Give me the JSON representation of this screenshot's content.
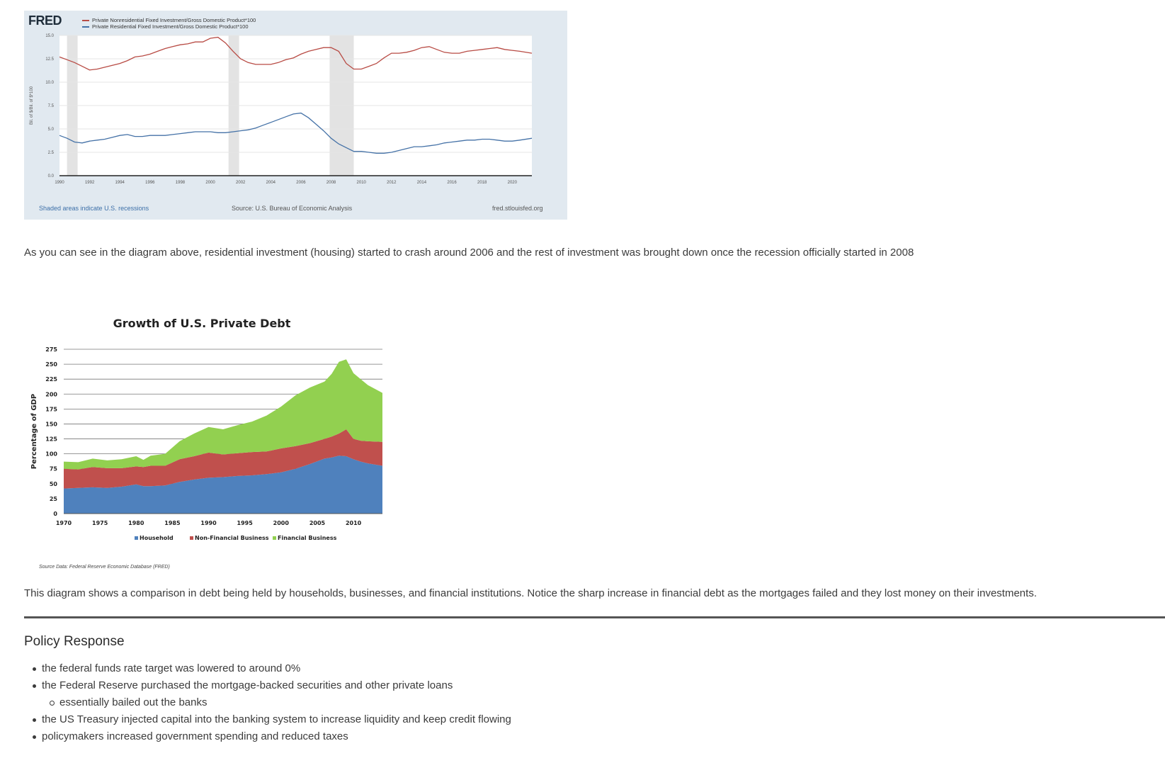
{
  "fred": {
    "logo": "FRED",
    "legend": [
      {
        "label": "Private Nonresidential Fixed Investment/Gross Domestic Product*100",
        "color": "#b84b44"
      },
      {
        "label": "Private Residential Fixed Investment/Gross Domestic Product*100",
        "color": "#4572a7"
      }
    ],
    "footer_left": "Shaded areas indicate U.S. recessions",
    "footer_mid": "Source: U.S. Bureau of Economic Analysis",
    "footer_right": "fred.stlouisfed.org"
  },
  "paragraph1": "As you can see in the diagram above, residential investment (housing) started to crash around 2006 and the rest of investment was brought down once the recession officially started in 2008",
  "debt_source": "Source Data: Federal Reserve Economic Database (FRED)",
  "paragraph2": "This diagram shows a comparison in debt being held by households, businesses, and financial institutions. Notice the sharp increase in financial debt as the mortgages failed and they lost money on their investments.",
  "policy": {
    "title": "Policy Response",
    "items": [
      "the federal funds rate target was lowered to around 0%",
      "the Federal Reserve purchased the mortgage-backed securities and other private loans",
      "essentially bailed out the banks",
      "the US Treasury injected capital into the banking system to increase liquidity and keep credit flowing",
      "policymakers increased government spending and reduced taxes"
    ]
  },
  "chart_data": [
    {
      "type": "line",
      "title": "",
      "ylabel": "Bil. of $/Bil. of $*100",
      "xlim": [
        1990,
        2021.3
      ],
      "ylim": [
        0,
        15
      ],
      "yticks": [
        "0.0",
        "2.5",
        "5.0",
        "7.5",
        "10.0",
        "12.5",
        "15.0"
      ],
      "xticks": [
        "1990",
        "1992",
        "1994",
        "1996",
        "1998",
        "2000",
        "2002",
        "2004",
        "2006",
        "2008",
        "2010",
        "2012",
        "2014",
        "2016",
        "2018",
        "2020"
      ],
      "recessions": [
        [
          1990.5,
          1991.2
        ],
        [
          2001.2,
          2001.9
        ],
        [
          2007.9,
          2009.5
        ]
      ],
      "grid": true,
      "legend_position": "top-left",
      "series": [
        {
          "name": "Private Nonresidential Fixed Investment/Gross Domestic Product*100",
          "color": "#b84b44",
          "x": [
            1990,
            1990.5,
            1991,
            1991.5,
            1992,
            1992.5,
            1993,
            1993.5,
            1994,
            1994.5,
            1995,
            1995.5,
            1996,
            1996.5,
            1997,
            1997.5,
            1998,
            1998.5,
            1999,
            1999.5,
            2000,
            2000.5,
            2001,
            2001.5,
            2002,
            2002.5,
            2003,
            2003.5,
            2004,
            2004.5,
            2005,
            2005.5,
            2006,
            2006.5,
            2007,
            2007.5,
            2008,
            2008.5,
            2009,
            2009.5,
            2010,
            2010.5,
            2011,
            2011.5,
            2012,
            2012.5,
            2013,
            2013.5,
            2014,
            2014.5,
            2015,
            2015.5,
            2016,
            2016.5,
            2017,
            2017.5,
            2018,
            2018.5,
            2019,
            2019.5,
            2020,
            2020.5,
            2021.3
          ],
          "y": [
            12.7,
            12.4,
            12.1,
            11.7,
            11.3,
            11.4,
            11.6,
            11.8,
            12.0,
            12.3,
            12.7,
            12.8,
            13.0,
            13.3,
            13.6,
            13.8,
            14.0,
            14.1,
            14.3,
            14.3,
            14.7,
            14.8,
            14.2,
            13.3,
            12.5,
            12.1,
            11.9,
            11.9,
            11.9,
            12.1,
            12.4,
            12.6,
            13.0,
            13.3,
            13.5,
            13.7,
            13.7,
            13.3,
            12.0,
            11.4,
            11.4,
            11.7,
            12.0,
            12.6,
            13.1,
            13.1,
            13.2,
            13.4,
            13.7,
            13.8,
            13.5,
            13.2,
            13.1,
            13.1,
            13.3,
            13.4,
            13.5,
            13.6,
            13.7,
            13.5,
            13.4,
            13.3,
            13.1
          ]
        },
        {
          "name": "Private Residential Fixed Investment/Gross Domestic Product*100",
          "color": "#4572a7",
          "x": [
            1990,
            1990.5,
            1991,
            1991.5,
            1992,
            1992.5,
            1993,
            1993.5,
            1994,
            1994.5,
            1995,
            1995.5,
            1996,
            1996.5,
            1997,
            1997.5,
            1998,
            1998.5,
            1999,
            1999.5,
            2000,
            2000.5,
            2001,
            2001.5,
            2002,
            2002.5,
            2003,
            2003.5,
            2004,
            2004.5,
            2005,
            2005.5,
            2006,
            2006.5,
            2007,
            2007.5,
            2008,
            2008.5,
            2009,
            2009.5,
            2010,
            2010.5,
            2011,
            2011.5,
            2012,
            2012.5,
            2013,
            2013.5,
            2014,
            2014.5,
            2015,
            2015.5,
            2016,
            2016.5,
            2017,
            2017.5,
            2018,
            2018.5,
            2019,
            2019.5,
            2020,
            2020.5,
            2021.3
          ],
          "y": [
            4.3,
            4.0,
            3.6,
            3.5,
            3.7,
            3.8,
            3.9,
            4.1,
            4.3,
            4.4,
            4.2,
            4.2,
            4.3,
            4.3,
            4.3,
            4.4,
            4.5,
            4.6,
            4.7,
            4.7,
            4.7,
            4.6,
            4.6,
            4.7,
            4.8,
            4.9,
            5.1,
            5.4,
            5.7,
            6.0,
            6.3,
            6.6,
            6.7,
            6.2,
            5.5,
            4.8,
            4.0,
            3.4,
            3.0,
            2.6,
            2.6,
            2.5,
            2.4,
            2.4,
            2.5,
            2.7,
            2.9,
            3.1,
            3.1,
            3.2,
            3.3,
            3.5,
            3.6,
            3.7,
            3.8,
            3.8,
            3.9,
            3.9,
            3.8,
            3.7,
            3.7,
            3.8,
            4.0
          ]
        }
      ]
    },
    {
      "type": "area",
      "title": "Growth of U.S. Private Debt",
      "xlabel": "",
      "ylabel": "Percentage of GDP",
      "xlim": [
        1970,
        2014
      ],
      "ylim": [
        0,
        275
      ],
      "yticks": [
        0,
        25,
        50,
        75,
        100,
        125,
        150,
        175,
        200,
        225,
        250,
        275
      ],
      "xticks": [
        1970,
        1975,
        1980,
        1985,
        1990,
        1995,
        2000,
        2005,
        2010
      ],
      "stacked": true,
      "legend_position": "bottom",
      "x": [
        1970,
        1972,
        1974,
        1976,
        1978,
        1980,
        1981,
        1982,
        1984,
        1986,
        1988,
        1990,
        1992,
        1994,
        1996,
        1998,
        2000,
        2002,
        2004,
        2006,
        2007,
        2008,
        2009,
        2010,
        2011,
        2012,
        2014
      ],
      "series": [
        {
          "name": "Household",
          "color": "#4f81bd",
          "values": [
            42,
            43,
            44,
            43,
            45,
            49,
            46,
            46,
            47,
            53,
            57,
            60,
            61,
            63,
            64,
            66,
            69,
            75,
            83,
            92,
            94,
            97,
            96,
            91,
            87,
            84,
            80
          ]
        },
        {
          "name": "Non-Financial Business",
          "color": "#c0504d",
          "values": [
            33,
            31,
            34,
            33,
            31,
            30,
            32,
            34,
            33,
            38,
            39,
            42,
            38,
            38,
            39,
            38,
            40,
            38,
            35,
            33,
            35,
            37,
            45,
            34,
            35,
            37,
            40
          ]
        },
        {
          "name": "Financial Business",
          "color": "#92d050",
          "values": [
            12,
            12,
            14,
            13,
            15,
            17,
            12,
            17,
            20,
            30,
            38,
            43,
            42,
            47,
            51,
            60,
            70,
            85,
            93,
            96,
            105,
            120,
            117,
            110,
            103,
            94,
            82
          ]
        }
      ]
    }
  ]
}
